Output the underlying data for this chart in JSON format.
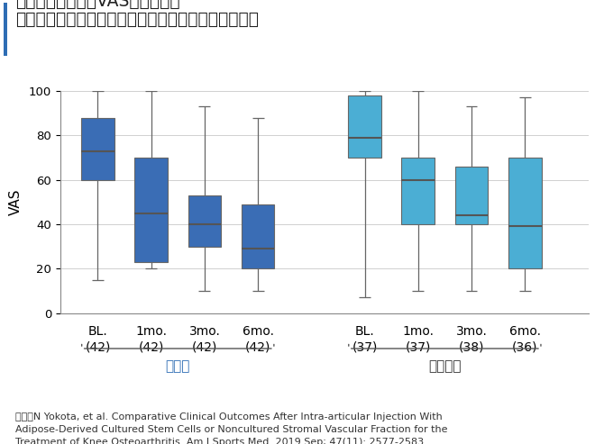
{
  "title_line1": "痛みの評価指標（VAS）への影響",
  "title_line2": "〜培養幹細胞投与時と、非培養幹細胞投与時の比較〜",
  "ylabel": "VAS",
  "ylim": [
    0,
    100
  ],
  "yticks": [
    0,
    20,
    40,
    60,
    80,
    100
  ],
  "background_color": "#ffffff",
  "group1_color": "#3A6DB5",
  "group2_color": "#4BAED4",
  "boxes": [
    {
      "label": "BL.\n(42)",
      "group": 1,
      "whisker_low": 15,
      "q1": 60,
      "median": 73,
      "q3": 88,
      "whisker_high": 100
    },
    {
      "label": "1mo.\n(42)",
      "group": 1,
      "whisker_low": 20,
      "q1": 23,
      "median": 45,
      "q3": 70,
      "whisker_high": 100
    },
    {
      "label": "3mo.\n(42)",
      "group": 1,
      "whisker_low": 10,
      "q1": 30,
      "median": 40,
      "q3": 53,
      "whisker_high": 93
    },
    {
      "label": "6mo.\n(42)",
      "group": 1,
      "whisker_low": 10,
      "q1": 20,
      "median": 29,
      "q3": 49,
      "whisker_high": 88
    },
    {
      "label": "BL.\n(37)",
      "group": 2,
      "whisker_low": 7,
      "q1": 70,
      "median": 79,
      "q3": 98,
      "whisker_high": 100
    },
    {
      "label": "1mo.\n(37)",
      "group": 2,
      "whisker_low": 10,
      "q1": 40,
      "median": 60,
      "q3": 70,
      "whisker_high": 100
    },
    {
      "label": "3mo.\n(38)",
      "group": 2,
      "whisker_low": 10,
      "q1": 40,
      "median": 44,
      "q3": 66,
      "whisker_high": 93
    },
    {
      "label": "6mo.\n(36)",
      "group": 2,
      "whisker_low": 10,
      "q1": 20,
      "median": 39,
      "q3": 70,
      "whisker_high": 97
    }
  ],
  "group1_label": "培養群",
  "group2_label": "非培養群",
  "citation_prefix": "出典：",
  "citation_body": "N Yokota, et al. Comparative Clinical Outcomes After Intra-articular Injection With\nAdipose-Derived Cultured Stem Cells or Noncultured Stromal Vascular Fraction for the\nTreatment of Knee Osteoarthritis. Am J Sports Med. 2019 Sep; 47(11): 2577-2583.",
  "title_fontsize": 13.5,
  "label_fontsize": 10,
  "tick_fontsize": 9.5,
  "citation_fontsize": 8,
  "blue_bar_color": "#2E6DB4"
}
